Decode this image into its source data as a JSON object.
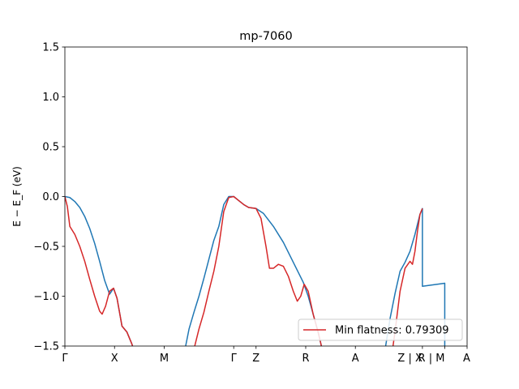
{
  "chart_data": {
    "type": "line",
    "title": "mp-7060",
    "xlabel": "",
    "ylabel": "E − E_F (eV)",
    "ylim": [
      -1.5,
      1.5
    ],
    "yticks": [
      -1.5,
      -1.0,
      -0.5,
      0.0,
      0.5,
      1.0,
      1.5
    ],
    "ytick_labels": [
      "−1.5",
      "−1.0",
      "−0.5",
      "0.0",
      "0.5",
      "1.0",
      "1.5"
    ],
    "xlim": [
      0,
      8.1
    ],
    "kpoints": [
      {
        "label": "Γ",
        "x": 0.0
      },
      {
        "label": "X",
        "x": 1.0
      },
      {
        "label": "M",
        "x": 2.0
      },
      {
        "label": "Γ",
        "x": 3.4
      },
      {
        "label": "Z",
        "x": 3.85
      },
      {
        "label": "R",
        "x": 4.85
      },
      {
        "label": "A",
        "x": 5.85
      },
      {
        "label": "Z | X",
        "x": 7.2
      },
      {
        "label": "R | M",
        "x": 7.65
      },
      {
        "label": "A",
        "x": 8.1
      }
    ],
    "grid": false,
    "legend": {
      "placement": "lower-right",
      "entries": [
        "Min flatness: 0.79309"
      ]
    },
    "series": [
      {
        "name": "",
        "color": "#1f77b4",
        "segments": [
          [
            [
              0.0,
              0.0
            ],
            [
              0.1,
              -0.01
            ],
            [
              0.2,
              -0.05
            ],
            [
              0.3,
              -0.11
            ],
            [
              0.4,
              -0.2
            ],
            [
              0.5,
              -0.32
            ],
            [
              0.6,
              -0.47
            ],
            [
              0.7,
              -0.65
            ],
            [
              0.8,
              -0.84
            ],
            [
              0.9,
              -0.98
            ],
            [
              0.98,
              -0.92
            ],
            [
              1.05,
              -1.02
            ],
            [
              1.15,
              -1.3
            ],
            [
              1.25,
              -1.36
            ],
            [
              1.35,
              -1.48
            ],
            [
              1.38,
              -1.53
            ]
          ],
          [
            [
              2.42,
              -1.53
            ],
            [
              2.5,
              -1.33
            ],
            [
              2.6,
              -1.16
            ],
            [
              2.7,
              -1.0
            ],
            [
              2.8,
              -0.82
            ],
            [
              2.9,
              -0.63
            ],
            [
              3.0,
              -0.44
            ],
            [
              3.1,
              -0.3
            ],
            [
              3.2,
              -0.08
            ],
            [
              3.3,
              0.0
            ],
            [
              3.4,
              0.0
            ],
            [
              3.5,
              -0.04
            ],
            [
              3.6,
              -0.08
            ],
            [
              3.7,
              -0.11
            ],
            [
              3.85,
              -0.12
            ],
            [
              4.0,
              -0.17
            ],
            [
              4.2,
              -0.3
            ],
            [
              4.4,
              -0.46
            ],
            [
              4.6,
              -0.66
            ],
            [
              4.8,
              -0.86
            ],
            [
              4.9,
              -1.0
            ],
            [
              5.0,
              -1.18
            ],
            [
              5.1,
              -1.36
            ],
            [
              5.18,
              -1.53
            ]
          ],
          [
            [
              6.45,
              -1.53
            ],
            [
              6.55,
              -1.22
            ],
            [
              6.65,
              -0.97
            ],
            [
              6.75,
              -0.75
            ],
            [
              6.85,
              -0.66
            ],
            [
              6.95,
              -0.55
            ],
            [
              7.05,
              -0.38
            ],
            [
              7.15,
              -0.18
            ],
            [
              7.2,
              -0.12
            ],
            [
              7.2,
              -0.9
            ],
            [
              7.35,
              -0.89
            ],
            [
              7.5,
              -0.88
            ],
            [
              7.65,
              -0.87
            ],
            [
              7.65,
              -1.53
            ]
          ]
        ]
      },
      {
        "name": "Min flatness: 0.79309",
        "color": "#d62728",
        "segments": [
          [
            [
              0.0,
              0.0
            ],
            [
              0.05,
              -0.1
            ],
            [
              0.1,
              -0.3
            ],
            [
              0.2,
              -0.38
            ],
            [
              0.3,
              -0.5
            ],
            [
              0.4,
              -0.65
            ],
            [
              0.5,
              -0.83
            ],
            [
              0.6,
              -1.0
            ],
            [
              0.7,
              -1.15
            ],
            [
              0.75,
              -1.18
            ],
            [
              0.82,
              -1.1
            ],
            [
              0.9,
              -0.95
            ],
            [
              0.98,
              -0.92
            ],
            [
              1.05,
              -1.02
            ],
            [
              1.15,
              -1.3
            ],
            [
              1.25,
              -1.36
            ],
            [
              1.35,
              -1.48
            ],
            [
              1.38,
              -1.53
            ]
          ],
          [
            [
              2.6,
              -1.53
            ],
            [
              2.7,
              -1.33
            ],
            [
              2.8,
              -1.16
            ],
            [
              2.9,
              -0.95
            ],
            [
              3.0,
              -0.75
            ],
            [
              3.1,
              -0.5
            ],
            [
              3.2,
              -0.15
            ],
            [
              3.3,
              -0.01
            ],
            [
              3.4,
              0.0
            ],
            [
              3.5,
              -0.04
            ],
            [
              3.6,
              -0.08
            ],
            [
              3.7,
              -0.11
            ],
            [
              3.85,
              -0.12
            ],
            [
              3.95,
              -0.22
            ],
            [
              4.05,
              -0.5
            ],
            [
              4.12,
              -0.72
            ],
            [
              4.2,
              -0.72
            ],
            [
              4.3,
              -0.68
            ],
            [
              4.4,
              -0.7
            ],
            [
              4.5,
              -0.8
            ],
            [
              4.6,
              -0.95
            ],
            [
              4.68,
              -1.05
            ],
            [
              4.75,
              -1.0
            ],
            [
              4.82,
              -0.88
            ],
            [
              4.9,
              -0.95
            ],
            [
              5.0,
              -1.18
            ],
            [
              5.1,
              -1.36
            ],
            [
              5.18,
              -1.53
            ]
          ],
          [
            [
              6.6,
              -1.53
            ],
            [
              6.65,
              -1.35
            ],
            [
              6.75,
              -0.95
            ],
            [
              6.85,
              -0.72
            ],
            [
              6.95,
              -0.65
            ],
            [
              7.0,
              -0.68
            ],
            [
              7.05,
              -0.55
            ],
            [
              7.1,
              -0.35
            ],
            [
              7.15,
              -0.18
            ],
            [
              7.2,
              -0.12
            ]
          ]
        ]
      }
    ]
  }
}
